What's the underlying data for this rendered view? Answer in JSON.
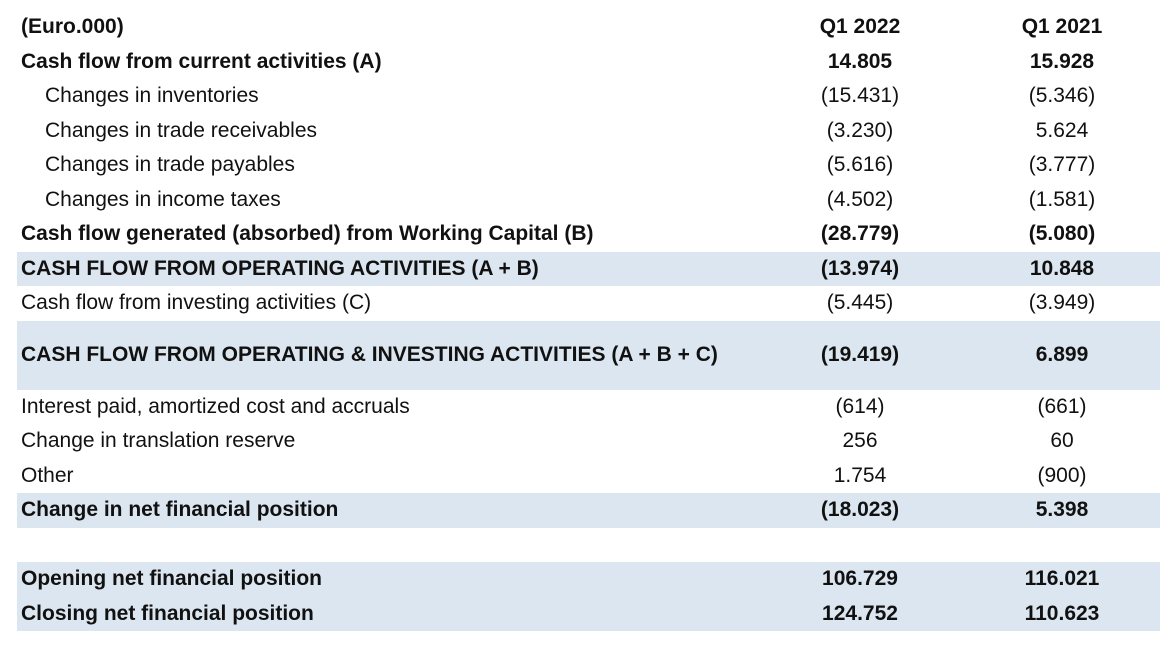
{
  "header": {
    "label": "(Euro.000)",
    "col1": "Q1 2022",
    "col2": "Q1 2021"
  },
  "rows": [
    {
      "label": "Cash flow from current activities (A)",
      "v1": "14.805",
      "v2": "15.928"
    },
    {
      "label": "Changes in inventories",
      "v1": "(15.431)",
      "v2": "(5.346)"
    },
    {
      "label": "Changes in trade receivables",
      "v1": "(3.230)",
      "v2": "5.624"
    },
    {
      "label": "Changes in trade payables",
      "v1": "(5.616)",
      "v2": "(3.777)"
    },
    {
      "label": "Changes in income taxes",
      "v1": "(4.502)",
      "v2": "(1.581)"
    },
    {
      "label": "Cash flow generated (absorbed) from Working Capital (B)",
      "v1": "(28.779)",
      "v2": "(5.080)"
    },
    {
      "label": "CASH FLOW FROM OPERATING ACTIVITIES (A + B)",
      "v1": "(13.974)",
      "v2": "10.848"
    },
    {
      "label": "Cash flow from investing activities (C)",
      "v1": "(5.445)",
      "v2": "(3.949)"
    },
    {
      "label": "CASH FLOW FROM OPERATING & INVESTING ACTIVITIES (A + B + C)",
      "v1": "(19.419)",
      "v2": "6.899"
    },
    {
      "label": "Interest paid, amortized cost and accruals",
      "v1": "(614)",
      "v2": "(661)"
    },
    {
      "label": "Change in translation reserve",
      "v1": "256",
      "v2": "60"
    },
    {
      "label": "Other",
      "v1": "1.754",
      "v2": "(900)"
    },
    {
      "label": "Change in net financial position",
      "v1": "(18.023)",
      "v2": "5.398"
    },
    {
      "label": "Opening net financial position",
      "v1": "106.729",
      "v2": "116.021"
    },
    {
      "label": "Closing net financial position",
      "v1": "124.752",
      "v2": "110.623"
    }
  ]
}
